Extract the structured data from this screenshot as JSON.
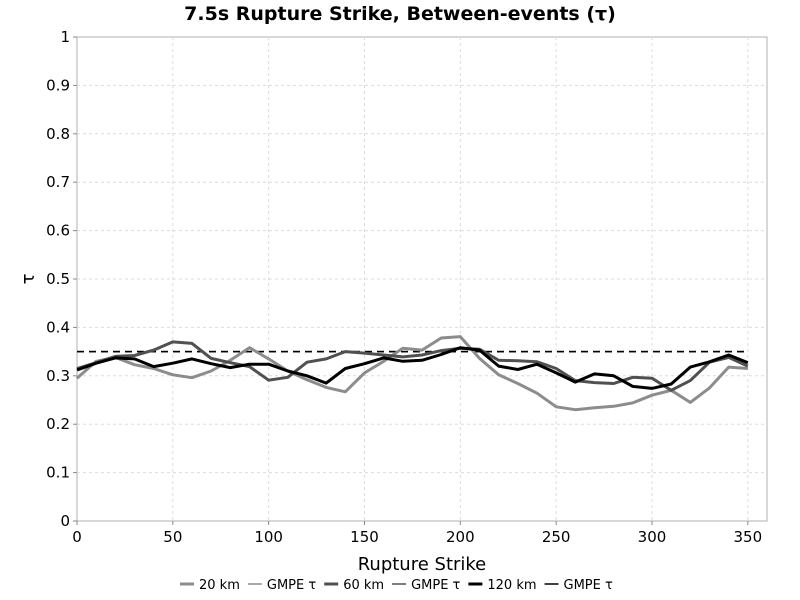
{
  "chart_data": {
    "type": "line",
    "title": "7.5s Rupture Strike, Between-events (τ)",
    "xlabel": "Rupture Strike",
    "ylabel": "τ",
    "xlim": [
      0,
      360
    ],
    "ylim": [
      0,
      1
    ],
    "x_ticks": [
      "0",
      "50",
      "100",
      "150",
      "200",
      "250",
      "300",
      "350"
    ],
    "y_ticks": [
      "0",
      "0.1",
      "0.2",
      "0.3",
      "0.4",
      "0.5",
      "0.6",
      "0.7",
      "0.8",
      "0.9",
      "1"
    ],
    "grid": true,
    "legend_position": "bottom",
    "x": [
      0,
      10,
      20,
      30,
      40,
      50,
      60,
      70,
      80,
      90,
      100,
      110,
      120,
      130,
      140,
      150,
      160,
      170,
      180,
      190,
      200,
      210,
      220,
      230,
      240,
      250,
      260,
      270,
      280,
      290,
      300,
      310,
      320,
      330,
      340,
      350
    ],
    "series": [
      {
        "name": "20 km",
        "color": "#8c8c8c",
        "dash": "solid",
        "values": [
          0.295,
          0.33,
          0.338,
          0.323,
          0.315,
          0.302,
          0.296,
          0.31,
          0.332,
          0.358,
          0.335,
          0.31,
          0.292,
          0.276,
          0.267,
          0.306,
          0.33,
          0.357,
          0.353,
          0.378,
          0.381,
          0.336,
          0.302,
          0.284,
          0.264,
          0.236,
          0.23,
          0.234,
          0.237,
          0.244,
          0.26,
          0.27,
          0.245,
          0.275,
          0.318,
          0.315
        ]
      },
      {
        "name": "GMPE τ",
        "color": "#8c8c8c",
        "dash": "dashed",
        "values": [
          0.35,
          0.35,
          0.35,
          0.35,
          0.35,
          0.35,
          0.35,
          0.35,
          0.35,
          0.35,
          0.35,
          0.35,
          0.35,
          0.35,
          0.35,
          0.35,
          0.35,
          0.35,
          0.35,
          0.35,
          0.35,
          0.35,
          0.35,
          0.35,
          0.35,
          0.35,
          0.35,
          0.35,
          0.35,
          0.35,
          0.35,
          0.35,
          0.35,
          0.35,
          0.35,
          0.35
        ]
      },
      {
        "name": "60 km",
        "color": "#505050",
        "dash": "solid",
        "values": [
          0.315,
          0.327,
          0.34,
          0.342,
          0.353,
          0.37,
          0.367,
          0.336,
          0.327,
          0.319,
          0.291,
          0.297,
          0.328,
          0.335,
          0.35,
          0.347,
          0.343,
          0.339,
          0.343,
          0.352,
          0.357,
          0.355,
          0.332,
          0.331,
          0.329,
          0.315,
          0.29,
          0.286,
          0.284,
          0.297,
          0.295,
          0.27,
          0.29,
          0.328,
          0.338,
          0.32
        ]
      },
      {
        "name": "GMPE τ",
        "color": "#505050",
        "dash": "dashed",
        "values": [
          0.35,
          0.35,
          0.35,
          0.35,
          0.35,
          0.35,
          0.35,
          0.35,
          0.35,
          0.35,
          0.35,
          0.35,
          0.35,
          0.35,
          0.35,
          0.35,
          0.35,
          0.35,
          0.35,
          0.35,
          0.35,
          0.35,
          0.35,
          0.35,
          0.35,
          0.35,
          0.35,
          0.35,
          0.35,
          0.35,
          0.35,
          0.35,
          0.35,
          0.35,
          0.35,
          0.35
        ]
      },
      {
        "name": "120 km",
        "color": "#000000",
        "dash": "solid",
        "values": [
          0.312,
          0.326,
          0.337,
          0.335,
          0.319,
          0.326,
          0.335,
          0.325,
          0.317,
          0.324,
          0.324,
          0.31,
          0.3,
          0.285,
          0.315,
          0.325,
          0.337,
          0.33,
          0.332,
          0.344,
          0.358,
          0.353,
          0.32,
          0.313,
          0.324,
          0.306,
          0.287,
          0.304,
          0.3,
          0.278,
          0.274,
          0.283,
          0.318,
          0.329,
          0.343,
          0.327
        ]
      },
      {
        "name": "GMPE τ",
        "color": "#000000",
        "dash": "dashed",
        "values": [
          0.35,
          0.35,
          0.35,
          0.35,
          0.35,
          0.35,
          0.35,
          0.35,
          0.35,
          0.35,
          0.35,
          0.35,
          0.35,
          0.35,
          0.35,
          0.35,
          0.35,
          0.35,
          0.35,
          0.35,
          0.35,
          0.35,
          0.35,
          0.35,
          0.35,
          0.35,
          0.35,
          0.35,
          0.35,
          0.35,
          0.35,
          0.35,
          0.35,
          0.35,
          0.35,
          0.35
        ]
      }
    ]
  }
}
